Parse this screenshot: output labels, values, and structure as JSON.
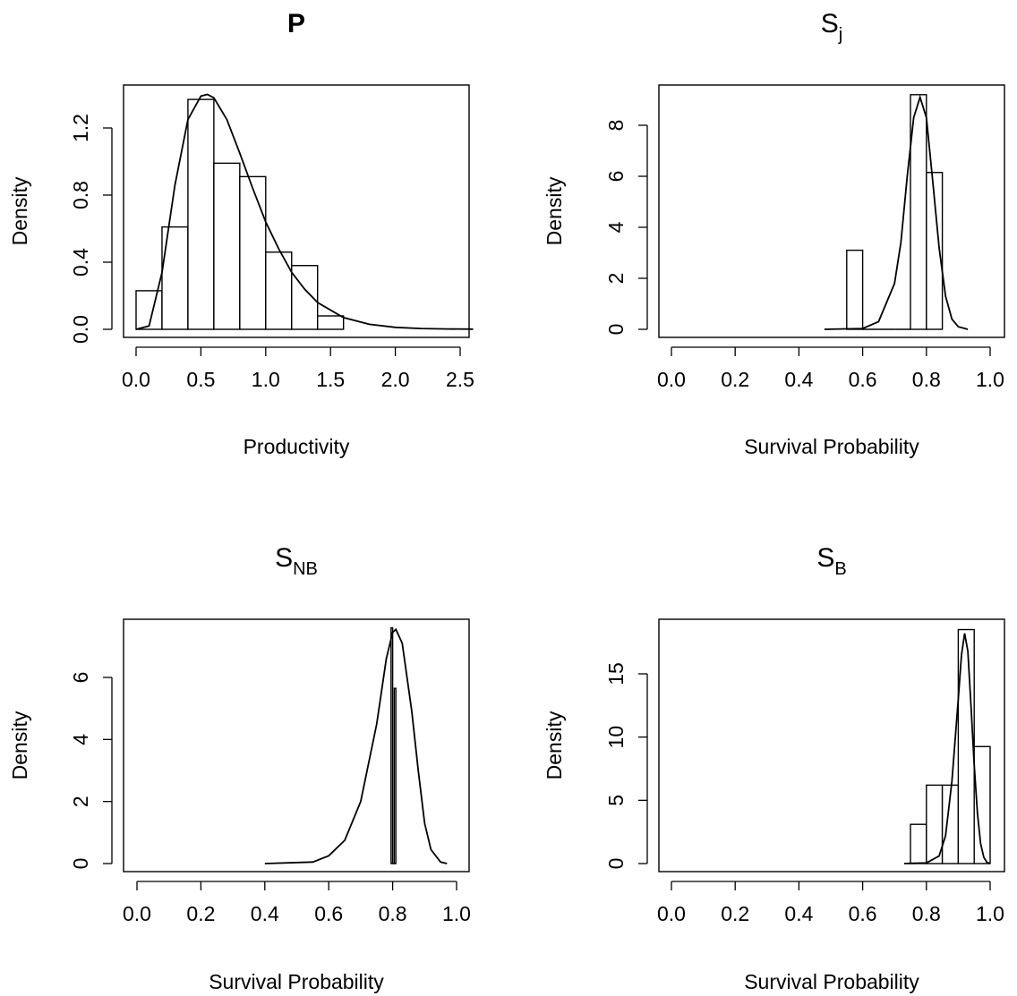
{
  "chart_data": [
    {
      "type": "bar",
      "title": "P",
      "title_bold": true,
      "xlabel": "Productivity",
      "ylabel": "Density",
      "xlim": [
        0.0,
        2.6
      ],
      "ylim": [
        0.0,
        1.4
      ],
      "x_ticks": [
        "0.0",
        "0.5",
        "1.0",
        "1.5",
        "2.0",
        "2.5"
      ],
      "y_ticks": [
        "0.0",
        "0.4",
        "0.8",
        "1.2"
      ],
      "histogram": {
        "breaks": [
          0.0,
          0.2,
          0.4,
          0.6,
          0.8,
          1.0,
          1.2,
          1.4,
          1.6
        ],
        "density": [
          0.23,
          0.61,
          1.37,
          0.99,
          0.91,
          0.46,
          0.38,
          0.08
        ]
      },
      "density_curve": {
        "x": [
          0.0,
          0.1,
          0.2,
          0.3,
          0.4,
          0.5,
          0.55,
          0.6,
          0.7,
          0.8,
          0.9,
          1.0,
          1.1,
          1.2,
          1.3,
          1.4,
          1.6,
          1.8,
          2.0,
          2.2,
          2.4,
          2.6
        ],
        "y": [
          0.0,
          0.02,
          0.34,
          0.86,
          1.25,
          1.39,
          1.4,
          1.38,
          1.25,
          1.05,
          0.84,
          0.64,
          0.48,
          0.34,
          0.24,
          0.16,
          0.07,
          0.03,
          0.012,
          0.005,
          0.002,
          0.001
        ]
      }
    },
    {
      "type": "bar",
      "title": "S",
      "title_sub": "j",
      "xlabel": "Survival Probability",
      "ylabel": "Density",
      "xlim": [
        0.0,
        1.0
      ],
      "ylim": [
        0,
        9.2
      ],
      "x_ticks": [
        "0.0",
        "0.2",
        "0.4",
        "0.6",
        "0.8",
        "1.0"
      ],
      "y_ticks": [
        "0",
        "2",
        "4",
        "6",
        "8"
      ],
      "histogram": {
        "breaks": [
          0.55,
          0.6,
          0.65,
          0.7,
          0.75,
          0.8,
          0.85
        ],
        "density": [
          3.1,
          0.0,
          0.0,
          0.0,
          9.2,
          6.15
        ]
      },
      "density_curve": {
        "x": [
          0.48,
          0.6,
          0.65,
          0.7,
          0.72,
          0.74,
          0.76,
          0.78,
          0.8,
          0.82,
          0.84,
          0.86,
          0.88,
          0.9,
          0.93
        ],
        "y": [
          0.0,
          0.03,
          0.3,
          1.8,
          3.4,
          6.0,
          8.3,
          9.1,
          8.3,
          5.8,
          3.2,
          1.3,
          0.4,
          0.1,
          0.0
        ]
      }
    },
    {
      "type": "bar",
      "title": "S",
      "title_sub": "NB",
      "xlabel": "Survival Probability",
      "ylabel": "Density",
      "xlim": [
        0.0,
        1.0
      ],
      "ylim": [
        0,
        7.6
      ],
      "x_ticks": [
        "0.0",
        "0.2",
        "0.4",
        "0.6",
        "0.8",
        "1.0"
      ],
      "y_ticks": [
        "0",
        "2",
        "4",
        "6"
      ],
      "histogram": {
        "breaks": [
          0.795,
          0.8,
          0.805,
          0.81
        ],
        "density": [
          7.6,
          0.0,
          5.65
        ]
      },
      "density_curve": {
        "x": [
          0.4,
          0.55,
          0.6,
          0.65,
          0.7,
          0.75,
          0.78,
          0.8,
          0.81,
          0.83,
          0.86,
          0.88,
          0.9,
          0.92,
          0.95,
          0.97
        ],
        "y": [
          0.0,
          0.05,
          0.25,
          0.75,
          2.0,
          4.5,
          6.6,
          7.45,
          7.55,
          7.1,
          4.9,
          3.0,
          1.3,
          0.45,
          0.05,
          0.0
        ]
      }
    },
    {
      "type": "bar",
      "title": "S",
      "title_sub": "B",
      "xlabel": "Survival Probability",
      "ylabel": "Density",
      "xlim": [
        0.0,
        1.0
      ],
      "ylim": [
        0,
        18.5
      ],
      "x_ticks": [
        "0.0",
        "0.2",
        "0.4",
        "0.6",
        "0.8",
        "1.0"
      ],
      "y_ticks": [
        "0",
        "5",
        "10",
        "15"
      ],
      "histogram": {
        "breaks": [
          0.75,
          0.8,
          0.85,
          0.9,
          0.95,
          1.0
        ],
        "density": [
          3.1,
          6.2,
          6.2,
          18.5,
          9.25
        ]
      },
      "density_curve": {
        "x": [
          0.73,
          0.8,
          0.84,
          0.86,
          0.88,
          0.9,
          0.91,
          0.92,
          0.93,
          0.94,
          0.95,
          0.96,
          0.97,
          0.98,
          0.99,
          1.0
        ],
        "y": [
          0.0,
          0.05,
          0.6,
          2.2,
          6.5,
          13.0,
          16.5,
          18.2,
          16.8,
          12.5,
          7.8,
          4.0,
          1.6,
          0.5,
          0.1,
          0.0
        ]
      }
    }
  ]
}
